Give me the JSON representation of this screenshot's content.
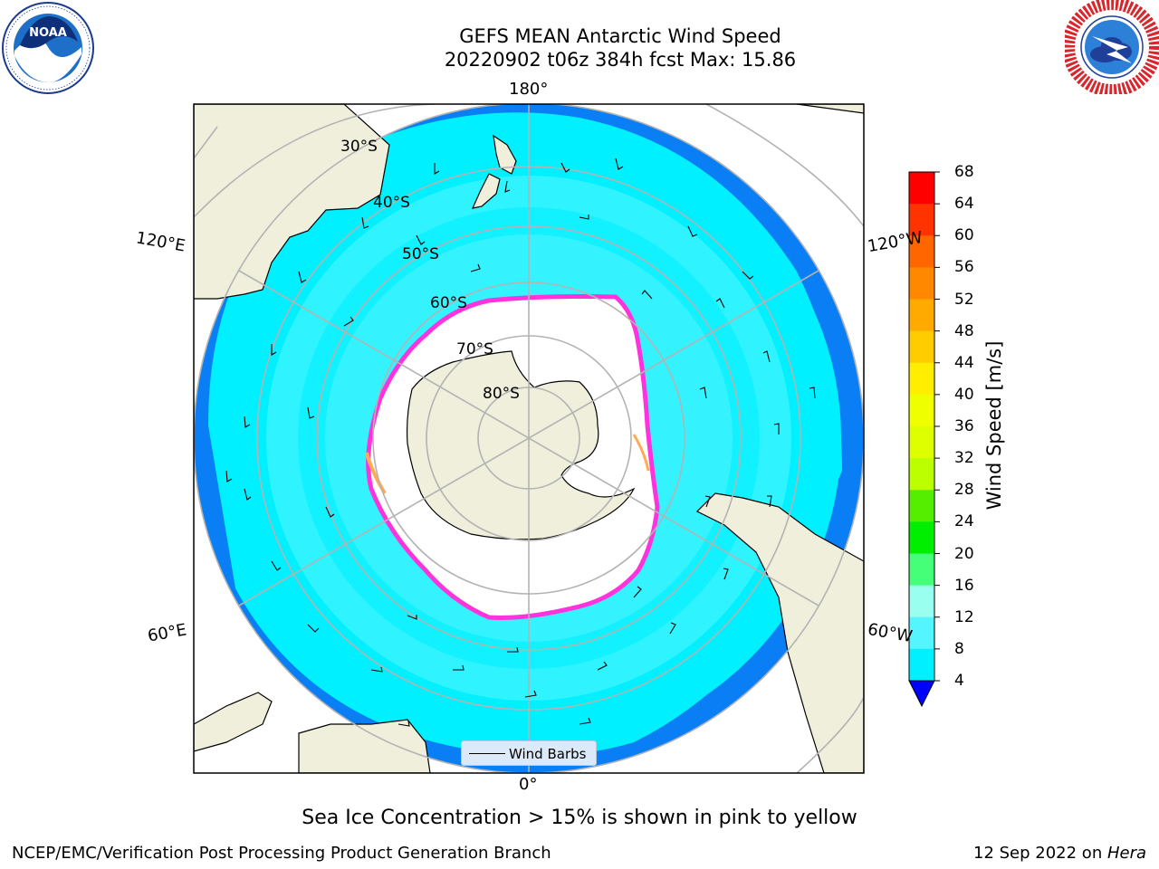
{
  "title": {
    "line1": "GEFS MEAN Antarctic Wind Speed",
    "line2": "20220902 t06z 384h fcst   Max: 15.86"
  },
  "logos": {
    "left": "noaa-logo",
    "right": "national-weather-service-logo"
  },
  "map": {
    "projection": "south-polar-stereographic",
    "longitude_labels": {
      "top": "180°",
      "bottom": "0°",
      "upper_left": "120°E",
      "upper_right": "120°W",
      "lower_left": "60°E",
      "lower_right": "60°W"
    },
    "latitude_labels": [
      "30°S",
      "40°S",
      "50°S",
      "60°S",
      "70°S",
      "80°S"
    ],
    "legend": {
      "wind_barbs": "Wind Barbs"
    },
    "colors": {
      "land": "#efefdc",
      "wind_4_8": "#0a7ff5",
      "wind_8_12": "#00f0ff",
      "wind_12_16": "#55f5ff",
      "sea_ice_edge": "#ff33dd",
      "sea_ice_pack": "#ffffff"
    }
  },
  "colorbar": {
    "label": "Wind Speed [m/s]",
    "ticks": [
      "68",
      "64",
      "60",
      "56",
      "52",
      "48",
      "44",
      "40",
      "36",
      "32",
      "28",
      "24",
      "20",
      "16",
      "12",
      "8",
      "4"
    ],
    "colors_top_to_bottom": [
      "#ff0000",
      "#ff3300",
      "#ff6600",
      "#ff8800",
      "#ffaa00",
      "#ffcc00",
      "#ffee00",
      "#f0ff00",
      "#ddff00",
      "#bbff00",
      "#55ee00",
      "#00ee00",
      "#44ff77",
      "#99ffee",
      "#55f5ff",
      "#00f0ff",
      "#0a7ff5"
    ],
    "extend_low_color": "#0000ff"
  },
  "caption": "Sea Ice Concentration > 15% is shown in pink to yellow",
  "footer": {
    "left": "NCEP/EMC/Verification Post Processing Product Generation Branch",
    "right_date": "12 Sep 2022 on ",
    "right_host": "Hera"
  }
}
